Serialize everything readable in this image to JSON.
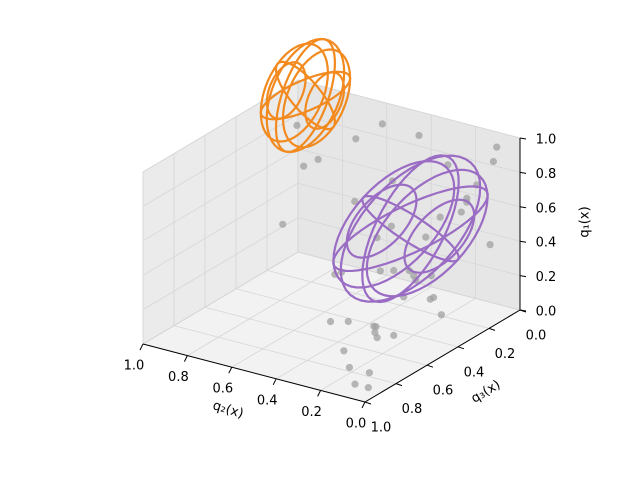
{
  "chart_data": {
    "type": "scatter3d",
    "xlabel": "q₂(x)",
    "ylabel": "q₃(x)",
    "zlabel": "q₁(x)",
    "xlim": [
      1.0,
      0.0
    ],
    "ylim": [
      0.0,
      1.0
    ],
    "zlim": [
      0.0,
      1.0
    ],
    "xticks": [
      {
        "value": 1,
        "label": "1.0"
      },
      {
        "value": 0.8,
        "label": "0.8"
      },
      {
        "value": 0.6,
        "label": "0.6"
      },
      {
        "value": 0.4,
        "label": "0.4"
      },
      {
        "value": 0.2,
        "label": "0.2"
      },
      {
        "value": 0,
        "label": "0.0"
      }
    ],
    "yticks": [
      {
        "value": 0,
        "label": "0.0"
      },
      {
        "value": 0.2,
        "label": "0.2"
      },
      {
        "value": 0.4,
        "label": "0.4"
      },
      {
        "value": 0.6,
        "label": "0.6"
      },
      {
        "value": 0.8,
        "label": "0.8"
      },
      {
        "value": 1,
        "label": "1.0"
      }
    ],
    "zticks": [
      {
        "value": 0,
        "label": "0.0"
      },
      {
        "value": 0.2,
        "label": "0.2"
      },
      {
        "value": 0.4,
        "label": "0.4"
      },
      {
        "value": 0.6,
        "label": "0.6"
      },
      {
        "value": 0.8,
        "label": "0.8"
      },
      {
        "value": 1,
        "label": "1.0"
      }
    ],
    "grid": true,
    "points": {
      "color": "#a0a0a0",
      "x": [
        0.05,
        0.1,
        0.02,
        0.15,
        0.08,
        0.2,
        0.03,
        0.12,
        0.25,
        0.05,
        0.3,
        0.1,
        0.02,
        0.18,
        0.07,
        0.35,
        0.04,
        0.22,
        0.14,
        0.4,
        0.06,
        0.5,
        0.09,
        0.28,
        0.6,
        0.01,
        0.16,
        0.45,
        0.7,
        0.11,
        0.03,
        0.55,
        0.2,
        0.8,
        0.08,
        0.33,
        0.65,
        0.02,
        0.12,
        0.9,
        0.26,
        0.05,
        0.42,
        0.15,
        0.07
      ],
      "y": [
        0.9,
        0.8,
        0.95,
        0.6,
        0.7,
        0.85,
        0.3,
        0.5,
        0.75,
        0.1,
        0.4,
        0.2,
        0.55,
        0.35,
        0.05,
        0.65,
        0.45,
        0.15,
        0.9,
        0.25,
        0.6,
        0.35,
        0.8,
        0.5,
        0.2,
        0.7,
        0.05,
        0.55,
        0.3,
        0.4,
        0.15,
        0.1,
        0.65,
        0.25,
        0.95,
        0.45,
        0.6,
        0.35,
        0.75,
        0.15,
        0.85,
        0.5,
        0.05,
        0.3,
        0.65
      ],
      "z": [
        0.1,
        0.3,
        0.05,
        0.5,
        0.2,
        0.15,
        0.8,
        0.4,
        0.25,
        0.9,
        0.6,
        0.7,
        0.35,
        0.55,
        0.95,
        0.45,
        0.2,
        0.85,
        0.1,
        0.75,
        0.5,
        0.65,
        0.3,
        0.4,
        0.9,
        0.6,
        0.7,
        0.35,
        0.8,
        0.25,
        0.45,
        0.95,
        0.15,
        0.7,
        0.05,
        0.55,
        0.6,
        0.75,
        0.2,
        0.85,
        0.3,
        0.45,
        0.9,
        0.65,
        0.4
      ]
    },
    "ellipsoids": [
      {
        "color": "#f28a1f",
        "center": [
          0.75,
          0.31,
          1.16
        ],
        "radii": [
          0.1,
          0.25,
          0.3
        ]
      },
      {
        "color": "#9a6cc4",
        "center": [
          0.2,
          0.42,
          0.63
        ],
        "radii": [
          0.15,
          0.45,
          0.35
        ]
      }
    ]
  }
}
